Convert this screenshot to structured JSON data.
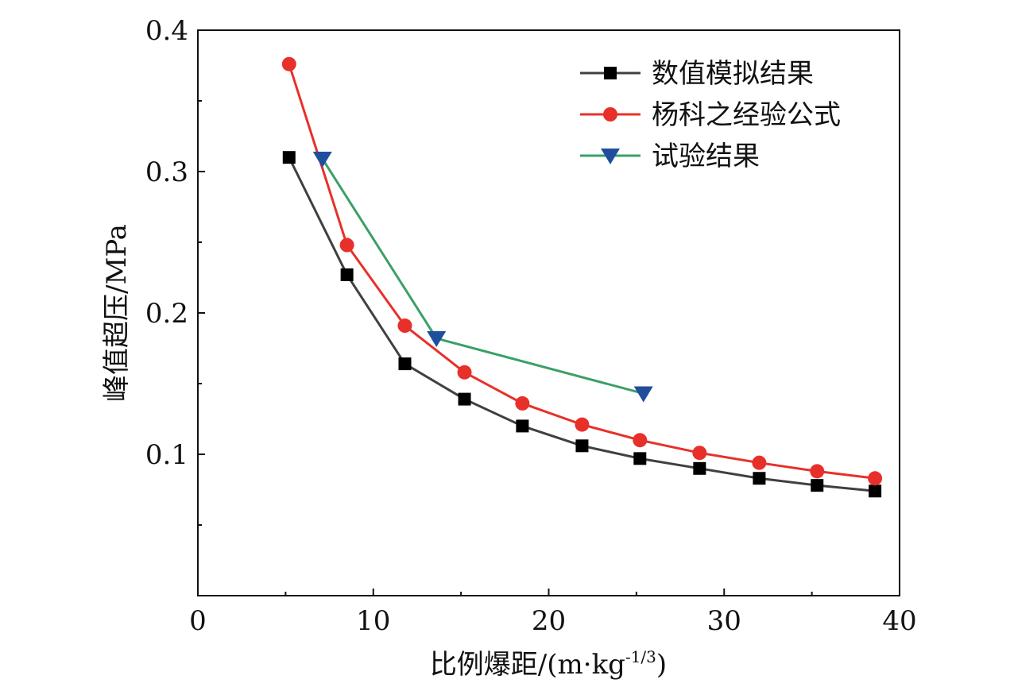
{
  "chart_data": {
    "type": "line",
    "title": "",
    "xlabel": "比例爆距/(m·kg",
    "xlabel_sup": "-1/3",
    "xlabel_close": ")",
    "ylabel": "峰值超压/MPa",
    "xlim": [
      0,
      40
    ],
    "ylim": [
      0,
      0.4
    ],
    "xticks": [
      "0",
      "10",
      "20",
      "30",
      "40"
    ],
    "yticks": [
      "0.1",
      "0.2",
      "0.3",
      "0.4"
    ],
    "grid": false,
    "legend_position": "top-right",
    "series": [
      {
        "name": "数值模拟结果",
        "color": "#404040",
        "marker": "square",
        "x": [
          5.2,
          8.5,
          11.8,
          15.2,
          18.5,
          21.9,
          25.2,
          28.6,
          32.0,
          35.3,
          38.6
        ],
        "y": [
          0.31,
          0.227,
          0.164,
          0.139,
          0.12,
          0.106,
          0.097,
          0.09,
          0.083,
          0.078,
          0.074
        ]
      },
      {
        "name": "杨科之经验公式",
        "color": "#e8302a",
        "marker": "circle",
        "x": [
          5.2,
          8.5,
          11.8,
          15.2,
          18.5,
          21.9,
          25.2,
          28.6,
          32.0,
          35.3,
          38.6
        ],
        "y": [
          0.376,
          0.248,
          0.191,
          0.158,
          0.136,
          0.121,
          0.11,
          0.101,
          0.094,
          0.088,
          0.083
        ]
      },
      {
        "name": "试验结果",
        "color": "#3aa067",
        "marker_color": "#1f4e9c",
        "marker": "triangle-down",
        "x": [
          7.1,
          13.6,
          25.4
        ],
        "y": [
          0.309,
          0.182,
          0.143
        ]
      }
    ]
  }
}
